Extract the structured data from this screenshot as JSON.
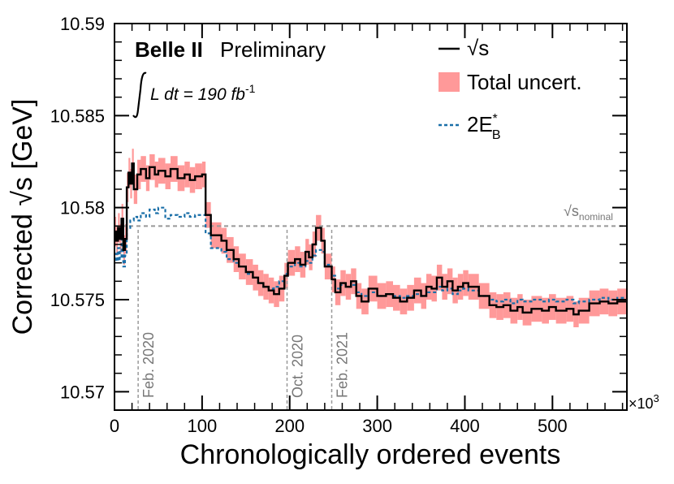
{
  "chart_data": {
    "type": "line",
    "experiment": "Belle II",
    "status": "Preliminary",
    "luminosity_label": "L dt = 190 fb",
    "luminosity_exp": "-1",
    "ylabel": "Corrected √s [GeV]",
    "xlabel": "Chronologically ordered events",
    "x_multiplier": "×10",
    "x_multiplier_exp": "3",
    "xlim": [
      0,
      585
    ],
    "ylim": [
      10.569,
      10.59
    ],
    "x_ticks": [
      0,
      100,
      200,
      300,
      400,
      500
    ],
    "y_ticks": [
      10.57,
      10.575,
      10.58,
      10.585,
      10.59
    ],
    "y_tick_labels": [
      "10.57",
      "10.575",
      "10.58",
      "10.585",
      "10.59"
    ],
    "legend": {
      "placement": "top-right",
      "sqrt_s": "√s",
      "uncert": "Total uncert.",
      "eb": "2E",
      "eb_sub": "B",
      "eb_sup": "*"
    },
    "nominal": {
      "value": 10.579,
      "label": "√s",
      "label_sub": "nominal",
      "color": "#999999"
    },
    "markers": [
      {
        "x": 27,
        "label": "Feb. 2020"
      },
      {
        "x": 197,
        "label": "Oct. 2020"
      },
      {
        "x": 248,
        "label": "Feb. 2021"
      }
    ],
    "series": [
      {
        "name": "√s",
        "color": "#000000",
        "band_color": "#ff9999",
        "points": [
          [
            0,
            10.5787,
            0.0008
          ],
          [
            2,
            10.5782,
            0.0008
          ],
          [
            4,
            10.5789,
            0.0008
          ],
          [
            6,
            10.5783,
            0.0008
          ],
          [
            8,
            10.5794,
            0.0008
          ],
          [
            10,
            10.5777,
            0.0008
          ],
          [
            12,
            10.5783,
            0.0008
          ],
          [
            14,
            10.5811,
            0.0008
          ],
          [
            16,
            10.5819,
            0.0008
          ],
          [
            18,
            10.5813,
            0.0008
          ],
          [
            20,
            10.5824,
            0.0008
          ],
          [
            22,
            10.581,
            0.0008
          ],
          [
            26,
            10.5818,
            0.0008
          ],
          [
            30,
            10.5821,
            0.0007
          ],
          [
            36,
            10.5816,
            0.0007
          ],
          [
            40,
            10.5822,
            0.0007
          ],
          [
            46,
            10.5818,
            0.0007
          ],
          [
            50,
            10.582,
            0.0007
          ],
          [
            58,
            10.5817,
            0.0007
          ],
          [
            64,
            10.5821,
            0.0007
          ],
          [
            72,
            10.5816,
            0.0007
          ],
          [
            80,
            10.5818,
            0.0007
          ],
          [
            86,
            10.5815,
            0.0007
          ],
          [
            92,
            10.5817,
            0.0007
          ],
          [
            100,
            10.5818,
            0.0007
          ],
          [
            104,
            10.5796,
            0.0007
          ],
          [
            110,
            10.5785,
            0.0007
          ],
          [
            122,
            10.5782,
            0.0007
          ],
          [
            128,
            10.5777,
            0.0007
          ],
          [
            136,
            10.5772,
            0.0007
          ],
          [
            142,
            10.5768,
            0.0007
          ],
          [
            150,
            10.5765,
            0.0007
          ],
          [
            158,
            10.5762,
            0.0007
          ],
          [
            164,
            10.5759,
            0.0007
          ],
          [
            170,
            10.5757,
            0.0007
          ],
          [
            176,
            10.5755,
            0.0007
          ],
          [
            182,
            10.5753,
            0.0007
          ],
          [
            188,
            10.5756,
            0.0007
          ],
          [
            194,
            10.5763,
            0.0007
          ],
          [
            198,
            10.577,
            0.0007
          ],
          [
            206,
            10.5772,
            0.0007
          ],
          [
            212,
            10.5769,
            0.0007
          ],
          [
            218,
            10.5776,
            0.0007
          ],
          [
            222,
            10.5773,
            0.0007
          ],
          [
            226,
            10.578,
            0.0007
          ],
          [
            230,
            10.5789,
            0.0007
          ],
          [
            236,
            10.5782,
            0.0007
          ],
          [
            240,
            10.5768,
            0.0007
          ],
          [
            248,
            10.5761,
            0.0007
          ],
          [
            252,
            10.5754,
            0.0007
          ],
          [
            258,
            10.5759,
            0.0007
          ],
          [
            264,
            10.5757,
            0.0007
          ],
          [
            270,
            10.576,
            0.0007
          ],
          [
            276,
            10.5752,
            0.0007
          ],
          [
            282,
            10.5749,
            0.0007
          ],
          [
            290,
            10.5756,
            0.0007
          ],
          [
            300,
            10.5752,
            0.0007
          ],
          [
            310,
            10.5753,
            0.0007
          ],
          [
            318,
            10.5751,
            0.0007
          ],
          [
            326,
            10.5749,
            0.0007
          ],
          [
            334,
            10.5751,
            0.0007
          ],
          [
            342,
            10.5755,
            0.0007
          ],
          [
            350,
            10.5752,
            0.0007
          ],
          [
            356,
            10.5757,
            0.0007
          ],
          [
            362,
            10.5756,
            0.0007
          ],
          [
            368,
            10.5762,
            0.0007
          ],
          [
            374,
            10.5757,
            0.0007
          ],
          [
            380,
            10.576,
            0.0007
          ],
          [
            386,
            10.5755,
            0.0007
          ],
          [
            392,
            10.5757,
            0.0007
          ],
          [
            398,
            10.5759,
            0.0007
          ],
          [
            404,
            10.5757,
            0.0007
          ],
          [
            416,
            10.5752,
            0.0007
          ],
          [
            428,
            10.5747,
            0.0007
          ],
          [
            436,
            10.5746,
            0.0007
          ],
          [
            444,
            10.5747,
            0.0007
          ],
          [
            452,
            10.5744,
            0.0007
          ],
          [
            460,
            10.5746,
            0.0007
          ],
          [
            466,
            10.5743,
            0.0007
          ],
          [
            476,
            10.5745,
            0.0007
          ],
          [
            488,
            10.5744,
            0.0007
          ],
          [
            496,
            10.5746,
            0.0007
          ],
          [
            504,
            10.5744,
            0.0007
          ],
          [
            516,
            10.5745,
            0.0007
          ],
          [
            524,
            10.5742,
            0.0007
          ],
          [
            530,
            10.5744,
            0.0007
          ],
          [
            542,
            10.5748,
            0.0007
          ],
          [
            554,
            10.5749,
            0.0007
          ],
          [
            564,
            10.5748,
            0.0007
          ],
          [
            574,
            10.5749,
            0.0007
          ],
          [
            585,
            10.5749,
            0.0007
          ]
        ]
      },
      {
        "name": "2E",
        "color": "#1a6fa8",
        "points": [
          [
            0,
            10.5775
          ],
          [
            2,
            10.5771
          ],
          [
            4,
            10.5778
          ],
          [
            6,
            10.5772
          ],
          [
            8,
            10.5784
          ],
          [
            10,
            10.5768
          ],
          [
            12,
            10.5774
          ],
          [
            14,
            10.5789
          ],
          [
            18,
            10.5793
          ],
          [
            22,
            10.5795
          ],
          [
            26,
            10.5793
          ],
          [
            30,
            10.5797
          ],
          [
            36,
            10.5795
          ],
          [
            40,
            10.5799
          ],
          [
            46,
            10.5797
          ],
          [
            50,
            10.58
          ],
          [
            58,
            10.5794
          ],
          [
            64,
            10.5796
          ],
          [
            72,
            10.5795
          ],
          [
            80,
            10.5797
          ],
          [
            86,
            10.5795
          ],
          [
            92,
            10.5796
          ],
          [
            100,
            10.5796
          ],
          [
            104,
            10.5786
          ],
          [
            110,
            10.5778
          ],
          [
            122,
            10.5776
          ],
          [
            128,
            10.5772
          ],
          [
            136,
            10.577
          ],
          [
            142,
            10.5768
          ],
          [
            150,
            10.5764
          ],
          [
            158,
            10.5762
          ],
          [
            164,
            10.5759
          ],
          [
            170,
            10.5757
          ],
          [
            176,
            10.5756
          ],
          [
            182,
            10.5757
          ],
          [
            188,
            10.576
          ],
          [
            194,
            10.5764
          ],
          [
            198,
            10.5768
          ],
          [
            206,
            10.577
          ],
          [
            212,
            10.5768
          ],
          [
            218,
            10.5771
          ],
          [
            222,
            10.577
          ],
          [
            226,
            10.5774
          ],
          [
            230,
            10.5777
          ],
          [
            236,
            10.5776
          ],
          [
            240,
            10.5769
          ],
          [
            248,
            10.5763
          ],
          [
            252,
            10.5756
          ],
          [
            258,
            10.5758
          ],
          [
            264,
            10.5757
          ],
          [
            270,
            10.5758
          ],
          [
            276,
            10.5754
          ],
          [
            282,
            10.5752
          ],
          [
            290,
            10.5754
          ],
          [
            300,
            10.5752
          ],
          [
            310,
            10.5753
          ],
          [
            318,
            10.5752
          ],
          [
            326,
            10.5751
          ],
          [
            334,
            10.5752
          ],
          [
            342,
            10.5753
          ],
          [
            350,
            10.5752
          ],
          [
            356,
            10.5754
          ],
          [
            362,
            10.5754
          ],
          [
            368,
            10.5757
          ],
          [
            374,
            10.5755
          ],
          [
            380,
            10.5756
          ],
          [
            386,
            10.5753
          ],
          [
            392,
            10.5755
          ],
          [
            398,
            10.5756
          ],
          [
            404,
            10.5755
          ],
          [
            416,
            10.5752
          ],
          [
            428,
            10.575
          ],
          [
            436,
            10.5749
          ],
          [
            444,
            10.575
          ],
          [
            452,
            10.5748
          ],
          [
            460,
            10.575
          ],
          [
            466,
            10.5749
          ],
          [
            476,
            10.575
          ],
          [
            488,
            10.5749
          ],
          [
            496,
            10.575
          ],
          [
            504,
            10.5749
          ],
          [
            516,
            10.575
          ],
          [
            524,
            10.5748
          ],
          [
            530,
            10.5749
          ],
          [
            542,
            10.575
          ],
          [
            554,
            10.5751
          ],
          [
            564,
            10.575
          ],
          [
            574,
            10.5751
          ],
          [
            585,
            10.5751
          ]
        ]
      }
    ]
  }
}
